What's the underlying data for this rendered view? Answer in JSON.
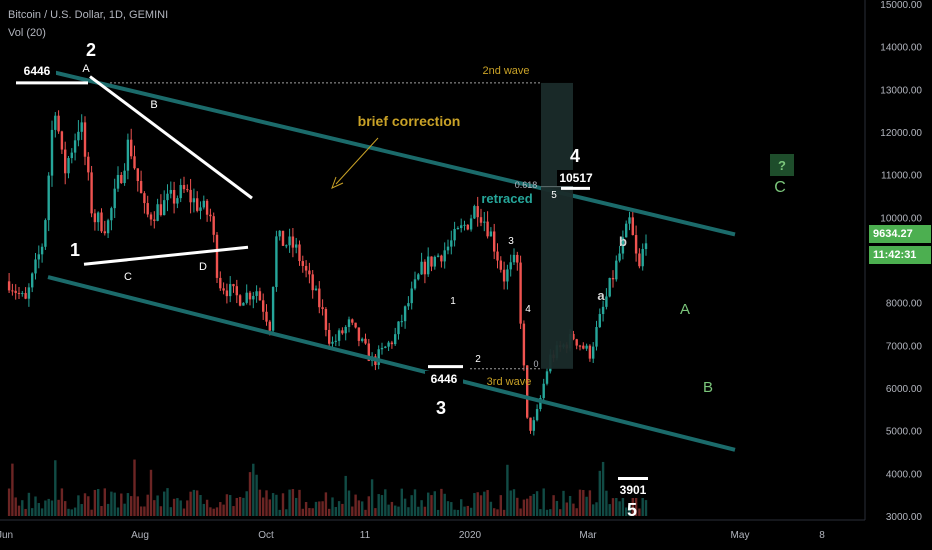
{
  "header": {
    "symbol_line": "Bitcoin / U.S. Dollar, 1D, GEMINI",
    "volume_line": "Vol (20)"
  },
  "price_tag": {
    "price": "9634.27",
    "countdown": "11:42:31"
  },
  "colors": {
    "up": "#26a69a",
    "down": "#ef5350",
    "channel": "#1b6b6b",
    "label_white": "#ffffff",
    "label_green": "#7bc67b",
    "label_gold": "#c9a227",
    "tag_green": "#4caf50"
  },
  "chart_data": {
    "type": "candlestick",
    "title": "Bitcoin / U.S. Dollar, 1D, GEMINI",
    "ylabel": "",
    "ylim": [
      3000,
      15000
    ],
    "y_ticks": [
      "15000.00",
      "14000.00",
      "13000.00",
      "12000.00",
      "11000.00",
      "10000.00",
      "9000.00",
      "8000.00",
      "7000.00",
      "6000.00",
      "5000.00",
      "4000.00",
      "3000.00"
    ],
    "x_ticks": [
      "Jun",
      "Aug",
      "Oct",
      "11",
      "2020",
      "Mar",
      "May",
      "8"
    ],
    "grid": false,
    "close_path": [
      {
        "date": "2019-06-01",
        "close": 8500
      },
      {
        "date": "2019-06-10",
        "close": 8000
      },
      {
        "date": "2019-06-20",
        "close": 9500
      },
      {
        "date": "2019-06-26",
        "close": 12800
      },
      {
        "date": "2019-07-01",
        "close": 11000
      },
      {
        "date": "2019-07-10",
        "close": 12300
      },
      {
        "date": "2019-07-17",
        "close": 10000
      },
      {
        "date": "2019-07-25",
        "close": 9800
      },
      {
        "date": "2019-08-06",
        "close": 11800
      },
      {
        "date": "2019-08-15",
        "close": 10000
      },
      {
        "date": "2019-08-25",
        "close": 10300
      },
      {
        "date": "2019-09-05",
        "close": 10600
      },
      {
        "date": "2019-09-20",
        "close": 10000
      },
      {
        "date": "2019-09-24",
        "close": 8500
      },
      {
        "date": "2019-10-05",
        "close": 8100
      },
      {
        "date": "2019-10-15",
        "close": 8300
      },
      {
        "date": "2019-10-23",
        "close": 7400
      },
      {
        "date": "2019-10-25",
        "close": 9500
      },
      {
        "date": "2019-11-05",
        "close": 9300
      },
      {
        "date": "2019-11-20",
        "close": 7800
      },
      {
        "date": "2019-11-25",
        "close": 7000
      },
      {
        "date": "2019-12-05",
        "close": 7500
      },
      {
        "date": "2019-12-18",
        "close": 6600
      },
      {
        "date": "2019-12-30",
        "close": 7200
      },
      {
        "date": "2020-01-14",
        "close": 8800
      },
      {
        "date": "2020-01-28",
        "close": 9300
      },
      {
        "date": "2020-02-08",
        "close": 9900
      },
      {
        "date": "2020-02-13",
        "close": 10300
      },
      {
        "date": "2020-02-20",
        "close": 9700
      },
      {
        "date": "2020-02-28",
        "close": 8600
      },
      {
        "date": "2020-03-06",
        "close": 9000
      },
      {
        "date": "2020-03-12",
        "close": 5000
      },
      {
        "date": "2020-03-16",
        "close": 5200
      },
      {
        "date": "2020-03-24",
        "close": 6700
      },
      {
        "date": "2020-04-06",
        "close": 7200
      },
      {
        "date": "2020-04-15",
        "close": 6800
      },
      {
        "date": "2020-04-29",
        "close": 8800
      },
      {
        "date": "2020-05-07",
        "close": 9900
      },
      {
        "date": "2020-05-12",
        "close": 8700
      },
      {
        "date": "2020-05-16",
        "close": 9634
      }
    ],
    "annotations": {
      "wave_labels": [
        "1",
        "2",
        "3",
        "4",
        "5"
      ],
      "abc_triangle": [
        "A",
        "B",
        "C",
        "D"
      ],
      "sub_waves": [
        "1",
        "2",
        "3",
        "4",
        "5"
      ],
      "wave4_labels": [
        "a",
        "b"
      ],
      "correction_labels": [
        "A",
        "B",
        "C",
        "?"
      ],
      "price_levels": [
        "6446",
        "6446",
        "10517",
        "3901"
      ],
      "texts": [
        "brief correction",
        "2nd wave",
        "3rd wave",
        "retraced",
        "0.618",
        "0"
      ]
    }
  }
}
